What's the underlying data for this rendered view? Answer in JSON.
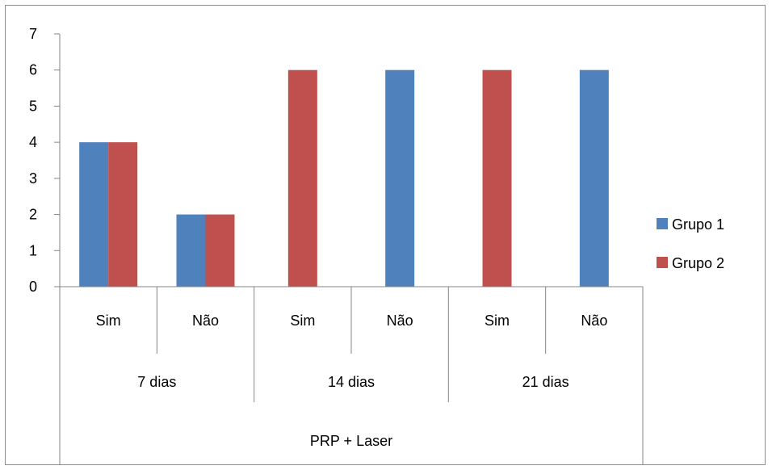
{
  "chart_data": {
    "type": "bar",
    "title": "",
    "xlabel": "",
    "ylabel": "",
    "ylim": [
      0,
      7
    ],
    "yticks": [
      0,
      1,
      2,
      3,
      4,
      5,
      6,
      7
    ],
    "grid": false,
    "legend_position": "right",
    "category_levels": {
      "outer": "PRP + Laser",
      "groups": [
        {
          "label": "7 dias",
          "items": [
            "Sim",
            "Não"
          ]
        },
        {
          "label": "14 dias",
          "items": [
            "Sim",
            "Não"
          ]
        },
        {
          "label": "21 dias",
          "items": [
            "Sim",
            "Não"
          ]
        }
      ]
    },
    "categories": [
      "Sim",
      "Não",
      "Sim",
      "Não",
      "Sim",
      "Não"
    ],
    "series": [
      {
        "name": "Grupo 1",
        "color": "#4f81bd",
        "values": [
          4,
          2,
          null,
          6,
          null,
          6
        ]
      },
      {
        "name": "Grupo 2",
        "color": "#c0504d",
        "values": [
          4,
          2,
          6,
          null,
          6,
          null
        ]
      }
    ]
  }
}
